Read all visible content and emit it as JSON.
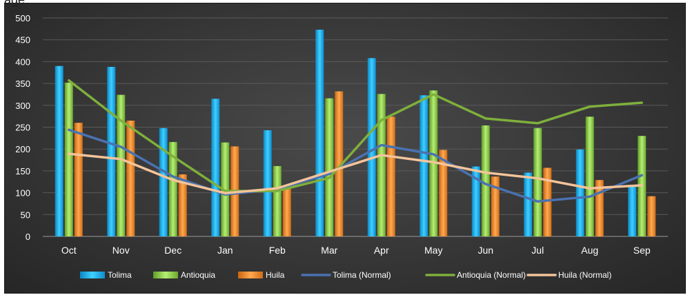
{
  "chart_data": {
    "type": "bar",
    "categories": [
      "Oct",
      "Nov",
      "Dec",
      "Jan",
      "Feb",
      "Mar",
      "Apr",
      "May",
      "Jun",
      "Jul",
      "Aug",
      "Sep"
    ],
    "ylim": [
      0,
      500
    ],
    "yticks": [
      0,
      50,
      100,
      150,
      200,
      250,
      300,
      350,
      400,
      450,
      500
    ],
    "grid": true,
    "legend_position": "bottom",
    "series": [
      {
        "name": "Tolima",
        "kind": "bar",
        "color": "#19b8f0",
        "values": [
          390,
          388,
          248,
          315,
          243,
          473,
          408,
          323,
          160,
          146,
          199,
          118
        ]
      },
      {
        "name": "Antioquia",
        "kind": "bar",
        "color": "#8fd14f",
        "values": [
          352,
          324,
          216,
          215,
          161,
          316,
          326,
          334,
          254,
          248,
          274,
          230
        ]
      },
      {
        "name": "Huila",
        "kind": "bar",
        "color": "#f28c28",
        "values": [
          260,
          265,
          142,
          206,
          109,
          332,
          274,
          198,
          137,
          157,
          129,
          92
        ]
      },
      {
        "name": "Tolima (Normal)",
        "kind": "line",
        "color": "#4a72b0",
        "values": [
          244,
          205,
          137,
          96,
          108,
          143,
          209,
          188,
          120,
          80,
          91,
          140
        ]
      },
      {
        "name": "Antioquia (Normal)",
        "kind": "line",
        "color": "#7faf3c",
        "values": [
          357,
          265,
          183,
          104,
          104,
          134,
          266,
          325,
          270,
          259,
          297,
          306
        ]
      },
      {
        "name": "Huila (Normal)",
        "kind": "line",
        "color": "#f4c49a",
        "values": [
          189,
          177,
          129,
          99,
          110,
          148,
          186,
          170,
          146,
          133,
          110,
          117
        ]
      }
    ]
  },
  "header_fragment": "age"
}
